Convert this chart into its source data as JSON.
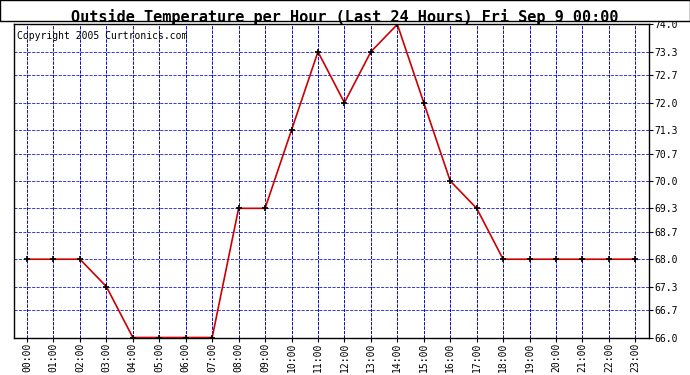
{
  "title": "Outside Temperature per Hour (Last 24 Hours) Fri Sep 9 00:00",
  "copyright": "Copyright 2005 Curtronics.com",
  "hours": [
    "00:00",
    "01:00",
    "02:00",
    "03:00",
    "04:00",
    "05:00",
    "06:00",
    "07:00",
    "08:00",
    "09:00",
    "10:00",
    "11:00",
    "12:00",
    "13:00",
    "14:00",
    "15:00",
    "16:00",
    "17:00",
    "18:00",
    "19:00",
    "20:00",
    "21:00",
    "22:00",
    "23:00"
  ],
  "values": [
    68.0,
    68.0,
    68.0,
    67.3,
    66.0,
    66.0,
    66.0,
    66.0,
    69.3,
    69.3,
    71.3,
    73.3,
    72.0,
    73.3,
    74.0,
    72.0,
    70.0,
    69.3,
    68.0,
    68.0,
    68.0,
    68.0,
    68.0,
    68.0
  ],
  "ylim": [
    66.0,
    74.0
  ],
  "yticks": [
    66.0,
    66.7,
    67.3,
    68.0,
    68.7,
    69.3,
    70.0,
    70.7,
    71.3,
    72.0,
    72.7,
    73.3,
    74.0
  ],
  "line_color": "#cc0000",
  "marker_color": "#000000",
  "grid_color": "#0000cc",
  "bg_color": "#ffffff",
  "title_fontsize": 11,
  "copyright_fontsize": 7,
  "axis_fontsize": 7
}
